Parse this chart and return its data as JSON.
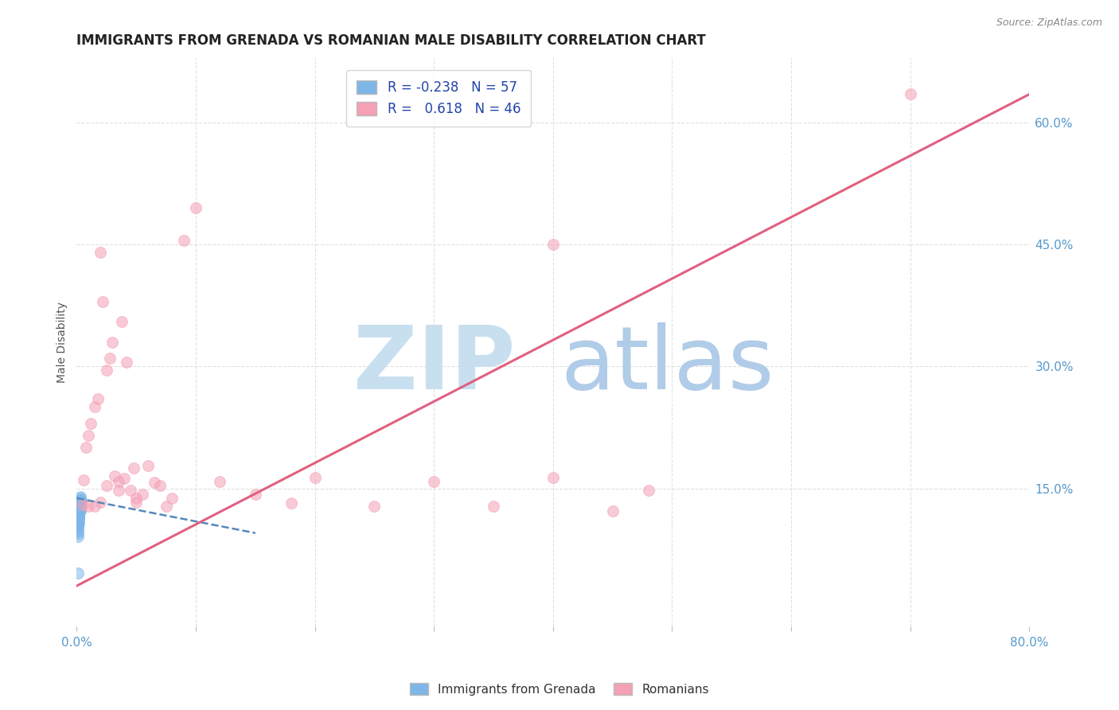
{
  "title": "IMMIGRANTS FROM GRENADA VS ROMANIAN MALE DISABILITY CORRELATION CHART",
  "source": "Source: ZipAtlas.com",
  "ylabel": "Male Disability",
  "xlim": [
    0.0,
    0.8
  ],
  "ylim": [
    -0.02,
    0.68
  ],
  "xtick_positions": [
    0.0,
    0.1,
    0.2,
    0.3,
    0.4,
    0.5,
    0.6,
    0.7,
    0.8
  ],
  "xticklabels": [
    "0.0%",
    "",
    "",
    "",
    "",
    "",
    "",
    "",
    "80.0%"
  ],
  "yticks_right": [
    0.15,
    0.3,
    0.45,
    0.6
  ],
  "ytick_right_labels": [
    "15.0%",
    "30.0%",
    "45.0%",
    "60.0%"
  ],
  "grid_color": "#e0e0e0",
  "background_color": "#ffffff",
  "blue_color": "#7EB6E8",
  "pink_color": "#F4A0B5",
  "blue_line_color": "#5588BB",
  "pink_line_color": "#E06080",
  "watermark_zip_color": "#C8DFF0",
  "watermark_atlas_color": "#B0CCE8",
  "legend_R_blue": "-0.238",
  "legend_N_blue": "57",
  "legend_R_pink": "0.618",
  "legend_N_pink": "46",
  "blue_scatter_x": [
    0.001,
    0.002,
    0.001,
    0.003,
    0.002,
    0.001,
    0.003,
    0.002,
    0.001,
    0.002,
    0.003,
    0.001,
    0.002,
    0.001,
    0.003,
    0.002,
    0.001,
    0.002,
    0.003,
    0.001,
    0.002,
    0.001,
    0.003,
    0.002,
    0.001,
    0.002,
    0.003,
    0.001,
    0.002,
    0.001,
    0.003,
    0.002,
    0.001,
    0.002,
    0.003,
    0.001,
    0.002,
    0.001,
    0.003,
    0.002,
    0.001,
    0.002,
    0.003,
    0.001,
    0.002,
    0.001,
    0.003,
    0.002,
    0.001,
    0.002,
    0.003,
    0.001,
    0.002,
    0.001,
    0.003,
    0.002,
    0.001
  ],
  "blue_scatter_y": [
    0.13,
    0.128,
    0.125,
    0.132,
    0.127,
    0.12,
    0.135,
    0.122,
    0.118,
    0.126,
    0.131,
    0.115,
    0.124,
    0.119,
    0.133,
    0.121,
    0.116,
    0.129,
    0.136,
    0.113,
    0.123,
    0.117,
    0.134,
    0.12,
    0.112,
    0.127,
    0.138,
    0.11,
    0.125,
    0.114,
    0.132,
    0.119,
    0.108,
    0.128,
    0.14,
    0.105,
    0.122,
    0.111,
    0.13,
    0.116,
    0.102,
    0.12,
    0.128,
    0.098,
    0.118,
    0.107,
    0.126,
    0.112,
    0.095,
    0.115,
    0.124,
    0.091,
    0.112,
    0.103,
    0.122,
    0.107,
    0.046
  ],
  "pink_scatter_x": [
    0.005,
    0.006,
    0.008,
    0.01,
    0.012,
    0.015,
    0.018,
    0.02,
    0.022,
    0.025,
    0.028,
    0.03,
    0.032,
    0.035,
    0.038,
    0.04,
    0.042,
    0.045,
    0.048,
    0.05,
    0.055,
    0.06,
    0.065,
    0.07,
    0.08,
    0.09,
    0.1,
    0.12,
    0.15,
    0.18,
    0.2,
    0.25,
    0.3,
    0.35,
    0.4,
    0.45,
    0.48,
    0.7,
    0.01,
    0.015,
    0.02,
    0.025,
    0.035,
    0.05,
    0.075,
    0.4
  ],
  "pink_scatter_y": [
    0.13,
    0.16,
    0.2,
    0.215,
    0.23,
    0.25,
    0.26,
    0.44,
    0.38,
    0.295,
    0.31,
    0.33,
    0.165,
    0.158,
    0.355,
    0.162,
    0.305,
    0.148,
    0.175,
    0.138,
    0.143,
    0.178,
    0.157,
    0.153,
    0.138,
    0.455,
    0.495,
    0.158,
    0.143,
    0.132,
    0.163,
    0.128,
    0.158,
    0.128,
    0.163,
    0.122,
    0.148,
    0.635,
    0.128,
    0.128,
    0.133,
    0.153,
    0.148,
    0.133,
    0.128,
    0.45
  ],
  "blue_trend_x": [
    0.0,
    0.15
  ],
  "blue_trend_y": [
    0.138,
    0.095
  ],
  "pink_trend_x": [
    0.0,
    0.8
  ],
  "pink_trend_y": [
    0.03,
    0.635
  ],
  "title_fontsize": 12,
  "axis_label_fontsize": 10,
  "tick_fontsize": 11
}
